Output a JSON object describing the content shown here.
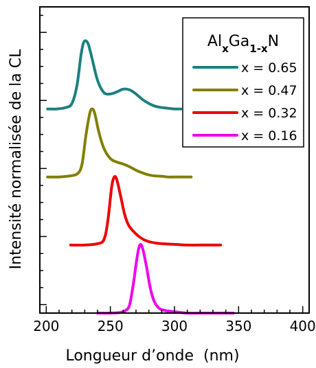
{
  "chart_data": {
    "type": "line",
    "title": "",
    "xlabel": "Longueur d’onde  (nm)",
    "ylabel": "Intensité normalisée de la CL",
    "xlim": [
      195,
      405
    ],
    "ylim": [
      0,
      4.5
    ],
    "xticks": [
      200,
      250,
      300,
      350,
      400
    ],
    "yticks": [
      0.125,
      1.125,
      2.125,
      3.125,
      4.125
    ],
    "x_minor_tick_step": 10,
    "y_minor_tick_step": 0.25,
    "show_y_tick_labels": false,
    "grid": false,
    "legend": {
      "position": "top-right",
      "title_parts": [
        {
          "text": "Al",
          "sub": false
        },
        {
          "text": "x",
          "sub": true
        },
        {
          "text": "Ga",
          "sub": false
        },
        {
          "text": "1-x",
          "sub": true
        },
        {
          "text": "N",
          "sub": false
        }
      ]
    },
    "series": [
      {
        "name": "x = 0.65",
        "color": "#1a8080",
        "offset": 3.0,
        "x": [
          201,
          208,
          215,
          220,
          224,
          227,
          229,
          231,
          233,
          236,
          240,
          245,
          250,
          255,
          260,
          265,
          270,
          275,
          280,
          285,
          290,
          295,
          300,
          305
        ],
        "y": [
          0.0,
          0.0,
          0.02,
          0.08,
          0.35,
          0.78,
          0.97,
          1.0,
          0.94,
          0.72,
          0.42,
          0.24,
          0.22,
          0.25,
          0.29,
          0.28,
          0.22,
          0.14,
          0.08,
          0.04,
          0.02,
          0.01,
          0.0,
          0.0
        ]
      },
      {
        "name": "x = 0.47",
        "color": "#808000",
        "offset": 2.0,
        "x": [
          201,
          210,
          220,
          225,
          228,
          231,
          234,
          236,
          238,
          241,
          245,
          250,
          255,
          260,
          265,
          270,
          275,
          280,
          285,
          290,
          295,
          300,
          305,
          313
        ],
        "y": [
          0.0,
          0.0,
          0.02,
          0.06,
          0.2,
          0.62,
          0.94,
          1.0,
          0.92,
          0.66,
          0.42,
          0.27,
          0.22,
          0.19,
          0.15,
          0.1,
          0.06,
          0.03,
          0.015,
          0.01,
          0.0,
          0.0,
          0.0,
          0.0
        ]
      },
      {
        "name": "x = 0.32",
        "color": "#ee0000",
        "offset": 1.0,
        "x": [
          219,
          230,
          240,
          245,
          248,
          251,
          253,
          255,
          258,
          261,
          264,
          268,
          272,
          276,
          280,
          285,
          290,
          300,
          310,
          320,
          336
        ],
        "y": [
          0.0,
          0.0,
          0.02,
          0.08,
          0.35,
          0.85,
          1.0,
          0.96,
          0.72,
          0.46,
          0.3,
          0.2,
          0.13,
          0.08,
          0.05,
          0.03,
          0.02,
          0.01,
          0.0,
          0.0,
          0.0
        ]
      },
      {
        "name": "x = 0.16",
        "color": "#ee00ee",
        "offset": 0.0,
        "x": [
          240,
          250,
          258,
          262,
          265,
          268,
          271,
          273,
          275,
          278,
          281,
          284,
          287,
          290,
          295,
          300,
          310,
          320,
          330,
          346
        ],
        "y": [
          0.0,
          0.0,
          0.01,
          0.04,
          0.12,
          0.44,
          0.84,
          1.0,
          0.96,
          0.7,
          0.38,
          0.18,
          0.09,
          0.05,
          0.03,
          0.02,
          0.0,
          0.0,
          0.0,
          0.0
        ]
      }
    ]
  }
}
